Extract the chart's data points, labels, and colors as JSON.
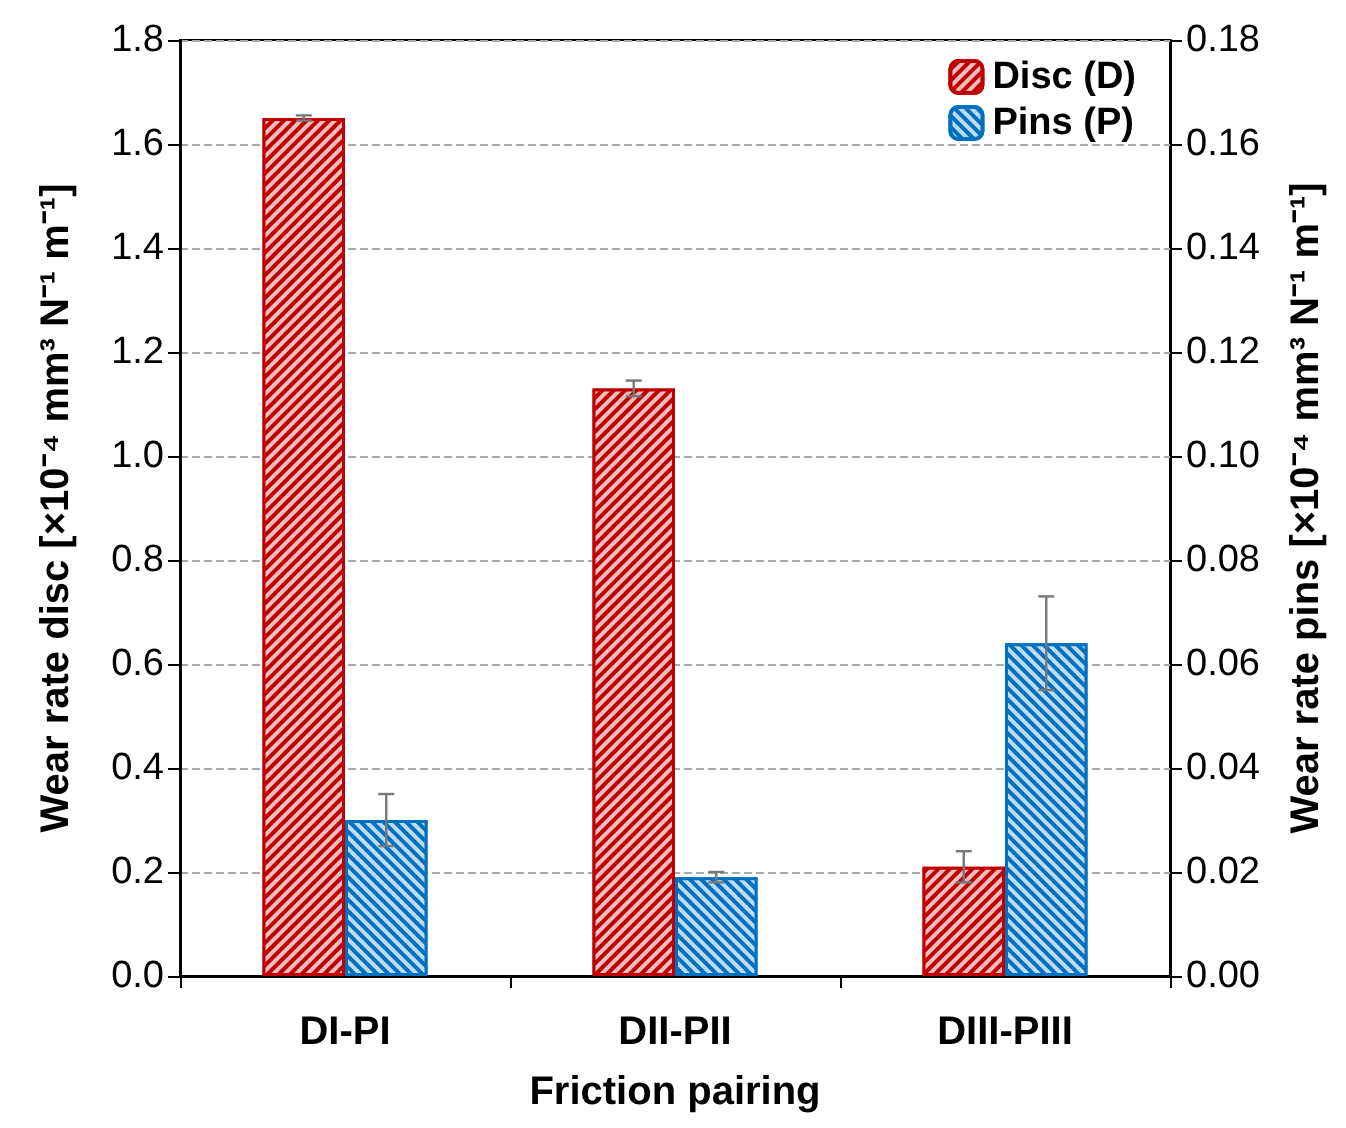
{
  "chart_data": {
    "type": "bar",
    "xlabel": "Friction pairing",
    "ylabel": "Wear rate disc [×10⁻⁴ mm³ N⁻¹ m⁻¹]",
    "y2label": "Wear rate pins [×10⁻⁴ mm³ N⁻¹ m⁻¹]",
    "categories": [
      "DI-PI",
      "DII-PII",
      "DIII-PIII"
    ],
    "series": [
      {
        "name": "Disc (D)",
        "color": "#c00000",
        "values": [
          1.65,
          1.13,
          0.21
        ],
        "errors": [
          0.005,
          0.015,
          0.03
        ]
      },
      {
        "name": "Pins (P)",
        "color": "#0070c0",
        "axis": "y2",
        "values": [
          0.03,
          0.019,
          0.064
        ],
        "errors": [
          0.005,
          0.001,
          0.009
        ]
      }
    ],
    "ylim": [
      0,
      1.8
    ],
    "yticks": [
      {
        "value": 0,
        "label": "0.0"
      },
      {
        "value": 0.2,
        "label": "0.2"
      },
      {
        "value": 0.4,
        "label": "0.4"
      },
      {
        "value": 0.6,
        "label": "0.6"
      },
      {
        "value": 0.8,
        "label": "0.8"
      },
      {
        "value": 1,
        "label": "1.0"
      },
      {
        "value": 1.2,
        "label": "1.2"
      },
      {
        "value": 1.4,
        "label": "1.4"
      },
      {
        "value": 1.6,
        "label": "1.6"
      },
      {
        "value": 1.8,
        "label": "1.8"
      }
    ],
    "y2lim": [
      0,
      0.18
    ],
    "y2ticks": [
      {
        "value": 0,
        "label": "0.00"
      },
      {
        "value": 0.02,
        "label": "0.02"
      },
      {
        "value": 0.04,
        "label": "0.04"
      },
      {
        "value": 0.06,
        "label": "0.06"
      },
      {
        "value": 0.08,
        "label": "0.08"
      },
      {
        "value": 0.1,
        "label": "0.10"
      },
      {
        "value": 0.12,
        "label": "0.12"
      },
      {
        "value": 0.14,
        "label": "0.14"
      },
      {
        "value": 0.16,
        "label": "0.16"
      },
      {
        "value": 0.18,
        "label": "0.18"
      }
    ],
    "grid": "y",
    "legend": "top right"
  }
}
